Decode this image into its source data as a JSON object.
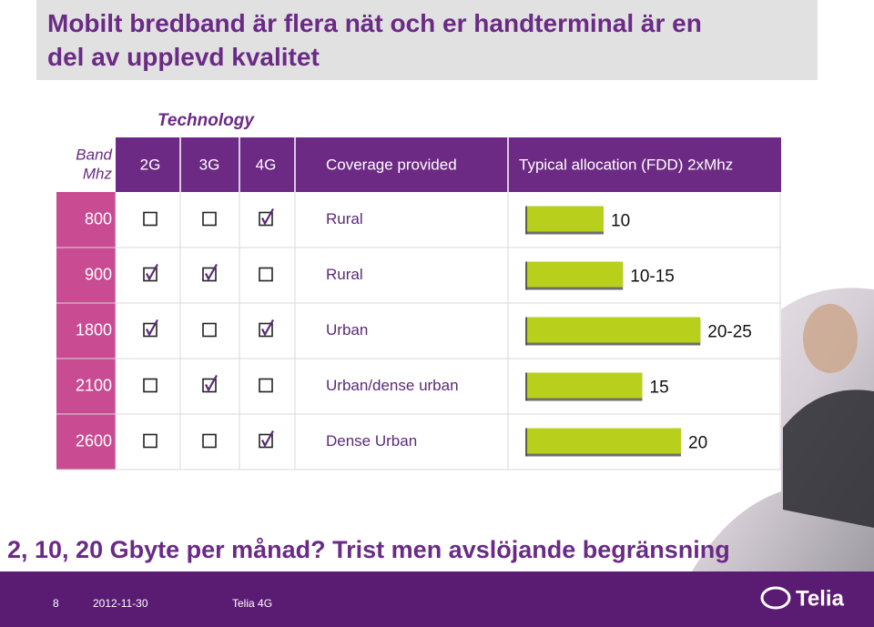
{
  "title": [
    "Mobilt bredband är flera nät och er handterminal är en",
    "del av upplevd kvalitet"
  ],
  "table": {
    "group_header": "Technology",
    "band_header": [
      "Band",
      "Mhz"
    ],
    "columns": [
      "2G",
      "3G",
      "4G",
      "Coverage provided",
      "Typical allocation (FDD) 2xMhz"
    ],
    "rows": [
      {
        "band": "800",
        "tech": [
          false,
          false,
          true
        ],
        "coverage": "Rural",
        "allocation": "10",
        "bar": 10
      },
      {
        "band": "900",
        "tech": [
          true,
          true,
          false
        ],
        "coverage": "Rural",
        "allocation": "10-15",
        "bar": 12.5
      },
      {
        "band": "1800",
        "tech": [
          true,
          false,
          true
        ],
        "coverage": "Urban",
        "allocation": "20-25",
        "bar": 22.5
      },
      {
        "band": "2100",
        "tech": [
          false,
          true,
          false
        ],
        "coverage": "Urban/dense urban",
        "allocation": "15",
        "bar": 15
      },
      {
        "band": "2600",
        "tech": [
          false,
          false,
          true
        ],
        "coverage": "Dense Urban",
        "allocation": "20",
        "bar": 20
      }
    ]
  },
  "caption": "2, 10, 20 Gbyte per månad? Trist men avslöjande begränsning",
  "footer": {
    "page": "8",
    "date": "2012-11-30",
    "name": "Telia 4G",
    "logo": "Telia"
  }
}
